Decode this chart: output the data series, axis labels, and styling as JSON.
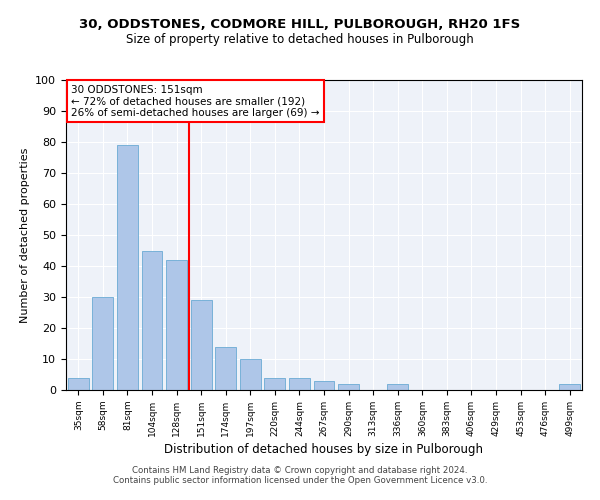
{
  "title1": "30, ODDSTONES, CODMORE HILL, PULBOROUGH, RH20 1FS",
  "title2": "Size of property relative to detached houses in Pulborough",
  "xlabel": "Distribution of detached houses by size in Pulborough",
  "ylabel": "Number of detached properties",
  "categories": [
    "35sqm",
    "58sqm",
    "81sqm",
    "104sqm",
    "128sqm",
    "151sqm",
    "174sqm",
    "197sqm",
    "220sqm",
    "244sqm",
    "267sqm",
    "290sqm",
    "313sqm",
    "336sqm",
    "360sqm",
    "383sqm",
    "406sqm",
    "429sqm",
    "453sqm",
    "476sqm",
    "499sqm"
  ],
  "values": [
    4,
    30,
    79,
    45,
    42,
    29,
    14,
    10,
    4,
    4,
    3,
    2,
    0,
    2,
    0,
    0,
    0,
    0,
    0,
    0,
    2
  ],
  "bar_color": "#aec6e8",
  "bar_edge_color": "#6aaad4",
  "vline_color": "red",
  "annotation_line1": "30 ODDSTONES: 151sqm",
  "annotation_line2": "← 72% of detached houses are smaller (192)",
  "annotation_line3": "26% of semi-detached houses are larger (69) →",
  "ylim": [
    0,
    100
  ],
  "yticks": [
    0,
    10,
    20,
    30,
    40,
    50,
    60,
    70,
    80,
    90,
    100
  ],
  "footer1": "Contains HM Land Registry data © Crown copyright and database right 2024.",
  "footer2": "Contains public sector information licensed under the Open Government Licence v3.0.",
  "background_color": "#eef2f9"
}
